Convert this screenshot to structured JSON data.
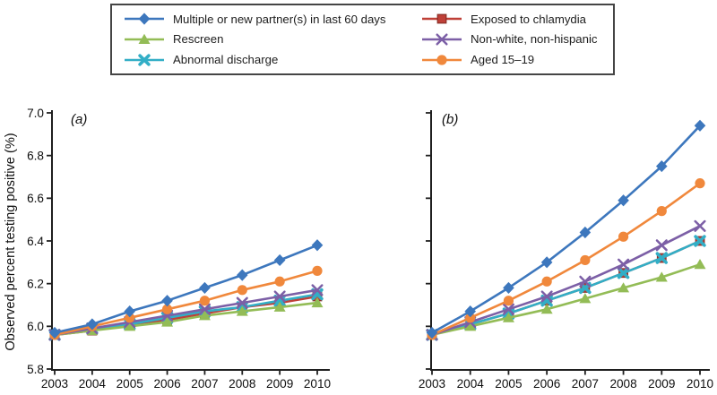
{
  "figure": {
    "ylabel": "Observed percent testing positive (%)",
    "background": "#ffffff",
    "axis_color": "#1f1f1f",
    "text_color": "#0f0f0f"
  },
  "legend": {
    "position": "top-center",
    "border_color": "#454545",
    "columns": [
      [
        0,
        1,
        2
      ],
      [
        3,
        4,
        5
      ]
    ],
    "items": [
      {
        "label": "Multiple or new partner(s) in last 60 days",
        "marker": "diamond",
        "color": "#3d77bd"
      },
      {
        "label": "Rescreen",
        "marker": "triangle",
        "color": "#93bc56"
      },
      {
        "label": "Abnormal discharge",
        "marker": "xbold",
        "color": "#32aec6"
      },
      {
        "label": "Exposed to chlamydia",
        "marker": "square",
        "color": "#bf4038"
      },
      {
        "label": "Non-white, non-hispanic",
        "marker": "xthin",
        "color": "#7c5fa6"
      },
      {
        "label": "Aged 15–19",
        "marker": "circle",
        "color": "#f0883c"
      }
    ]
  },
  "chart_data": [
    {
      "type": "line",
      "panel_label": "(a)",
      "title": "",
      "xlabel": "",
      "ylabel": "Observed percent testing positive (%)",
      "x": [
        "2003",
        "2004",
        "2005",
        "2006",
        "2007",
        "2008",
        "2009",
        "2010"
      ],
      "ylim": [
        5.8,
        7.0
      ],
      "yticks": [
        5.8,
        6.0,
        6.2,
        6.4,
        6.6,
        6.8,
        7.0
      ],
      "grid": false,
      "series": [
        {
          "name": "Exposed to chlamydia",
          "marker": "square",
          "color": "#bf4038",
          "values": [
            5.96,
            5.98,
            6.01,
            6.03,
            6.06,
            6.09,
            6.11,
            6.14
          ]
        },
        {
          "name": "Abnormal discharge",
          "marker": "xbold",
          "color": "#32aec6",
          "values": [
            5.96,
            5.99,
            6.01,
            6.04,
            6.07,
            6.09,
            6.12,
            6.15
          ]
        },
        {
          "name": "Rescreen",
          "marker": "triangle",
          "color": "#93bc56",
          "values": [
            5.96,
            5.98,
            6.0,
            6.02,
            6.05,
            6.07,
            6.09,
            6.11
          ]
        },
        {
          "name": "Non-white, non-hispanic",
          "marker": "xthin",
          "color": "#7c5fa6",
          "values": [
            5.96,
            5.99,
            6.02,
            6.05,
            6.08,
            6.11,
            6.14,
            6.17
          ]
        },
        {
          "name": "Aged 15–19",
          "marker": "circle",
          "color": "#f0883c",
          "values": [
            5.96,
            6.0,
            6.04,
            6.08,
            6.12,
            6.17,
            6.21,
            6.26
          ]
        },
        {
          "name": "Multiple or new partner(s) in last 60 days",
          "marker": "diamond",
          "color": "#3d77bd",
          "values": [
            5.97,
            6.01,
            6.07,
            6.12,
            6.18,
            6.24,
            6.31,
            6.38
          ]
        }
      ]
    },
    {
      "type": "line",
      "panel_label": "(b)",
      "title": "",
      "xlabel": "",
      "ylabel": "",
      "x": [
        "2003",
        "2004",
        "2005",
        "2006",
        "2007",
        "2008",
        "2009",
        "2010"
      ],
      "ylim": [
        5.8,
        7.0
      ],
      "yticks": [
        5.8,
        6.0,
        6.2,
        6.4,
        6.6,
        6.8,
        7.0
      ],
      "grid": false,
      "series": [
        {
          "name": "Exposed to chlamydia",
          "marker": "square",
          "color": "#bf4038",
          "values": [
            5.96,
            6.01,
            6.06,
            6.12,
            6.18,
            6.25,
            6.32,
            6.4
          ]
        },
        {
          "name": "Abnormal discharge",
          "marker": "xbold",
          "color": "#32aec6",
          "values": [
            5.96,
            6.01,
            6.06,
            6.12,
            6.18,
            6.25,
            6.32,
            6.4
          ]
        },
        {
          "name": "Rescreen",
          "marker": "triangle",
          "color": "#93bc56",
          "values": [
            5.96,
            6.0,
            6.04,
            6.08,
            6.13,
            6.18,
            6.23,
            6.29
          ]
        },
        {
          "name": "Non-white, non-hispanic",
          "marker": "xthin",
          "color": "#7c5fa6",
          "values": [
            5.96,
            6.02,
            6.08,
            6.14,
            6.21,
            6.29,
            6.38,
            6.47
          ]
        },
        {
          "name": "Aged 15–19",
          "marker": "circle",
          "color": "#f0883c",
          "values": [
            5.96,
            6.04,
            6.12,
            6.21,
            6.31,
            6.42,
            6.54,
            6.67
          ]
        },
        {
          "name": "Multiple or new partner(s) in last 60 days",
          "marker": "diamond",
          "color": "#3d77bd",
          "values": [
            5.97,
            6.07,
            6.18,
            6.3,
            6.44,
            6.59,
            6.75,
            6.94
          ]
        }
      ]
    }
  ]
}
